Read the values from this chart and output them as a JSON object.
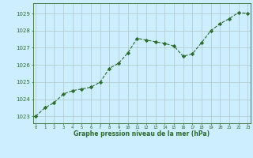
{
  "x": [
    0,
    1,
    2,
    3,
    4,
    5,
    6,
    7,
    8,
    9,
    10,
    11,
    12,
    13,
    14,
    15,
    16,
    17,
    18,
    19,
    20,
    21,
    22,
    23
  ],
  "y": [
    1023.0,
    1023.5,
    1023.8,
    1024.3,
    1024.5,
    1024.6,
    1024.7,
    1025.0,
    1025.8,
    1026.1,
    1026.7,
    1027.55,
    1027.45,
    1027.35,
    1027.25,
    1027.1,
    1026.5,
    1026.65,
    1027.3,
    1028.0,
    1028.4,
    1028.7,
    1029.05,
    1029.0
  ],
  "line_color": "#2d6a2d",
  "marker_color": "#2d6a2d",
  "bg_color": "#cceeff",
  "grid_color": "#b0c8c8",
  "xlabel": "Graphe pression niveau de la mer (hPa)",
  "xlabel_color": "#2d6a2d",
  "yticks": [
    1023,
    1024,
    1025,
    1026,
    1027,
    1028,
    1029
  ],
  "xticks": [
    0,
    1,
    2,
    3,
    4,
    5,
    6,
    7,
    8,
    9,
    10,
    11,
    12,
    13,
    14,
    15,
    16,
    17,
    18,
    19,
    20,
    21,
    22,
    23
  ],
  "ylim": [
    1022.6,
    1029.6
  ],
  "xlim": [
    -0.3,
    23.3
  ],
  "figwidth": 3.2,
  "figheight": 2.0,
  "dpi": 100
}
